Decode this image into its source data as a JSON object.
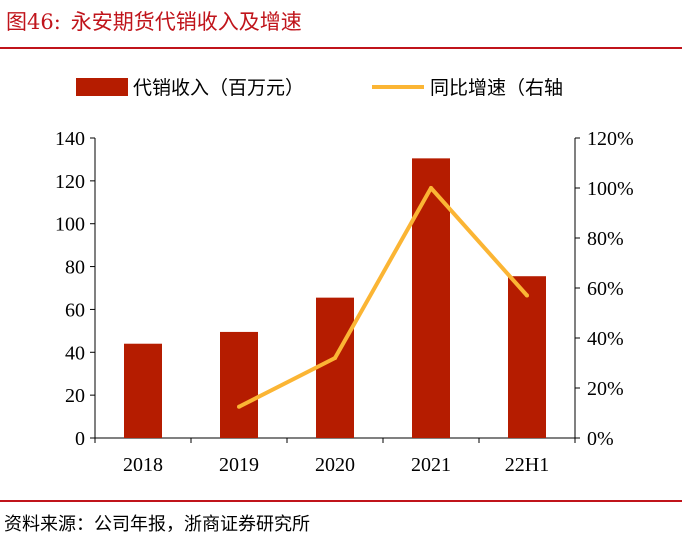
{
  "header": {
    "figure_no": "图46:",
    "title": "永安期货代销收入及增速"
  },
  "footer": {
    "source": "资料来源：公司年报，浙商证券研究所"
  },
  "colors": {
    "bar": "#b51c00",
    "line": "#fbb534",
    "accent": "#c0141b"
  },
  "chart_data": {
    "type": "bar",
    "categories": [
      "2018",
      "2019",
      "2020",
      "2021",
      "22H1"
    ],
    "series": [
      {
        "name": "代销收入（百万元）",
        "type": "bar",
        "axis": "left",
        "values": [
          44,
          49.5,
          65.5,
          130.5,
          75.5
        ]
      },
      {
        "name": "同比增速（右轴",
        "type": "line",
        "axis": "right",
        "values": [
          null,
          0.125,
          0.32,
          1.0,
          0.57
        ]
      }
    ],
    "y_left": {
      "min": 0,
      "max": 140,
      "ticks": [
        "0",
        "20",
        "40",
        "60",
        "80",
        "100",
        "120",
        "140"
      ]
    },
    "y_right": {
      "min": 0,
      "max": 1.2,
      "ticks": [
        "0%",
        "20%",
        "40%",
        "60%",
        "80%",
        "100%",
        "120%"
      ]
    },
    "legend_position": "top"
  }
}
